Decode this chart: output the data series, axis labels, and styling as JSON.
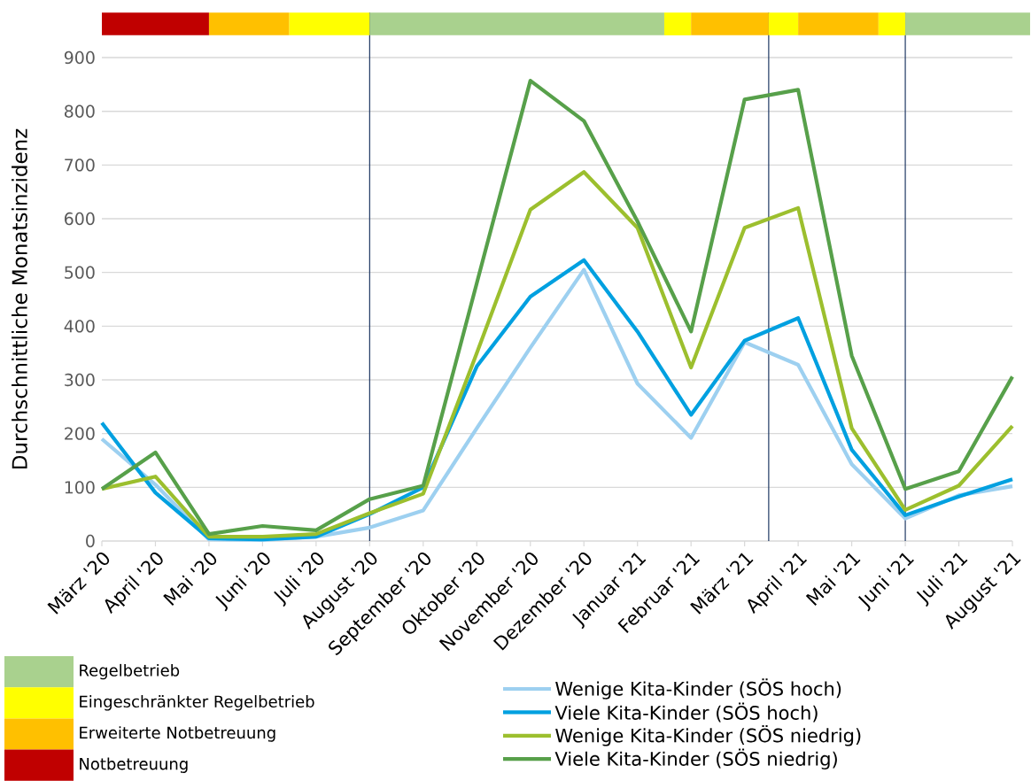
{
  "chart_data": {
    "type": "line",
    "ylabel": "Durchschnittliche Monatsinzidenz",
    "categories": [
      "März '20",
      "April '20",
      "Mai '20",
      "Juni '20",
      "Juli '20",
      "August '20",
      "September '20",
      "Oktober '20",
      "November '20",
      "Dezember '20",
      "Januar '21",
      "Februar '21",
      "März '21",
      "April '21",
      "Mai '21",
      "Juni '21",
      "Juli '21",
      "August '21"
    ],
    "series": [
      {
        "name": "Wenige Kita-Kinder (SÖS hoch)",
        "color": "#9dd0f0",
        "values": [
          190,
          105,
          3,
          2,
          8,
          25,
          57,
          210,
          360,
          505,
          293,
          192,
          370,
          328,
          143,
          42,
          85,
          102
        ]
      },
      {
        "name": "Viele Kita-Kinder (SÖS hoch)",
        "color": "#00a0e0",
        "values": [
          220,
          90,
          5,
          3,
          8,
          50,
          100,
          325,
          455,
          523,
          390,
          235,
          373,
          415,
          170,
          48,
          83,
          115
        ]
      },
      {
        "name": "Wenige Kita-Kinder  (SÖS niedrig)",
        "color": "#9cbf2e",
        "values": [
          97,
          120,
          8,
          8,
          13,
          52,
          88,
          350,
          617,
          687,
          583,
          323,
          583,
          620,
          210,
          58,
          103,
          214
        ]
      },
      {
        "name": "Viele Kita-Kinder (SÖS niedrig)",
        "color": "#57a04a",
        "values": [
          97,
          165,
          13,
          28,
          20,
          78,
          103,
          480,
          857,
          782,
          595,
          390,
          822,
          840,
          345,
          97,
          130,
          306
        ]
      }
    ],
    "ylim": [
      0,
      900
    ],
    "yticks": [
      0,
      100,
      200,
      300,
      400,
      500,
      600,
      700,
      800,
      900
    ],
    "grid": "y",
    "legend": "bottom right",
    "marker": "none",
    "line_style": "solid",
    "ref_lines": [
      {
        "axis": "x",
        "value": "August '20",
        "color": "#1f3864"
      },
      {
        "axis": "x",
        "value": "Juni '21",
        "color": "#1f3864"
      }
    ],
    "annotations": [
      "Regelbetrieb",
      "Eingeschränkter Regelbetrieb",
      "Erweiterte Notbetreuung",
      "Notbetreuung"
    ]
  }
}
